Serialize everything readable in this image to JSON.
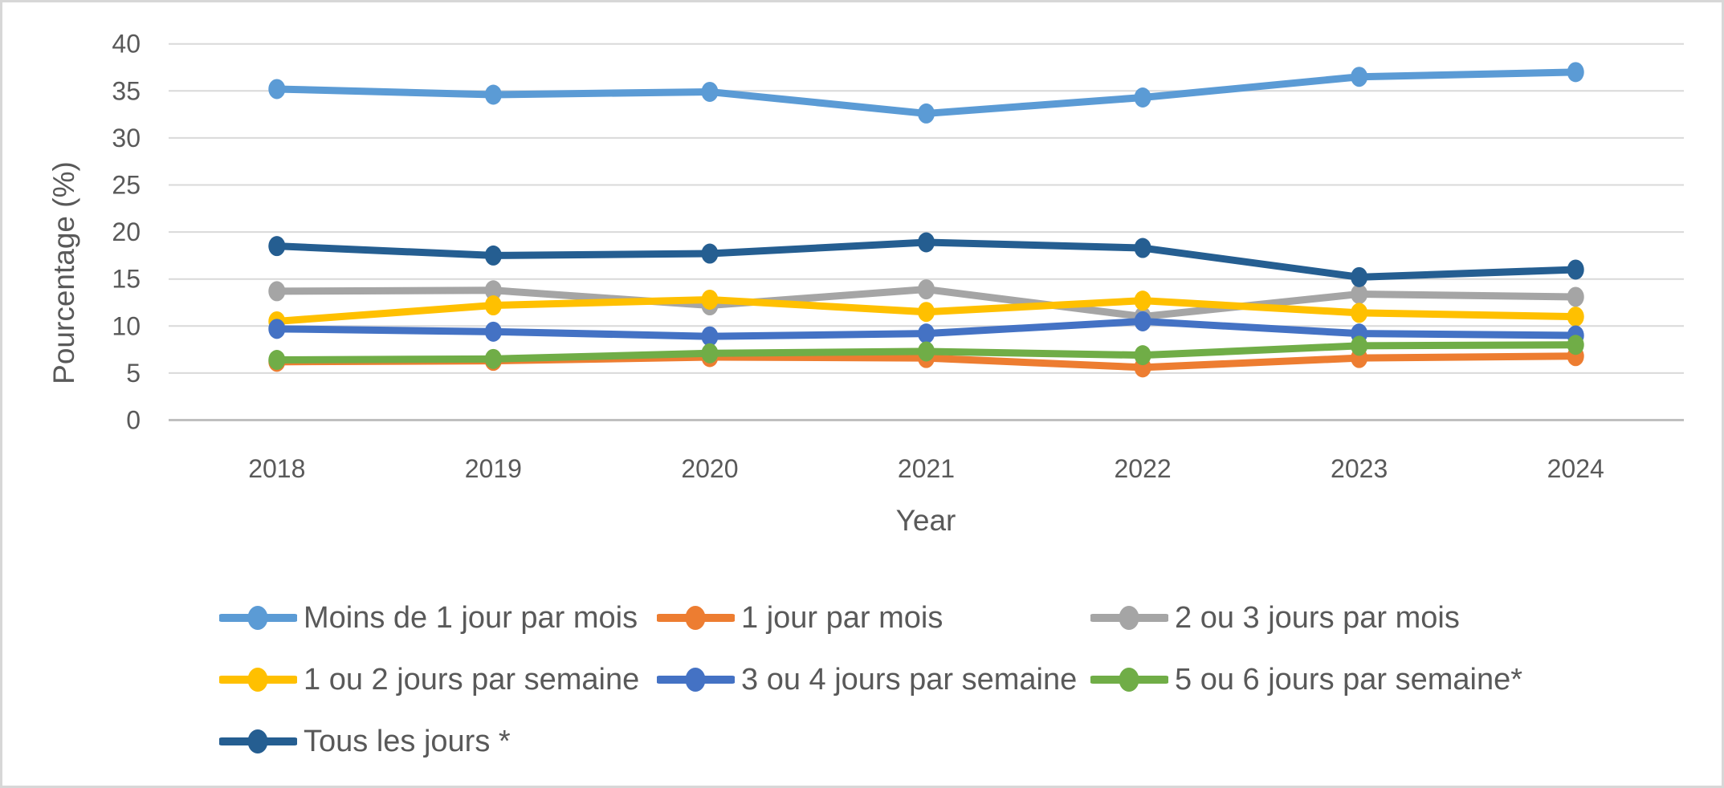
{
  "chart_data": {
    "type": "line",
    "title": "",
    "xlabel": "Year",
    "ylabel": "Pourcentage (%)",
    "x": [
      "2018",
      "2019",
      "2020",
      "2021",
      "2022",
      "2023",
      "2024"
    ],
    "ylim": [
      0,
      40
    ],
    "yticks": [
      0,
      5,
      10,
      15,
      20,
      25,
      30,
      35,
      40
    ],
    "grid": true,
    "gridline_color": "#d9d9d9",
    "axis_line_color": "#bfbfbf",
    "axis_text_color": "#595959",
    "legend_position": "bottom",
    "marker_style": "circle",
    "series": [
      {
        "name": "Moins de 1 jour par mois",
        "color": "#5B9BD5",
        "values": [
          35.2,
          34.6,
          34.9,
          32.6,
          34.3,
          36.5,
          37.0
        ]
      },
      {
        "name": "1 jour par mois",
        "color": "#ED7D31",
        "values": [
          6.2,
          6.3,
          6.7,
          6.6,
          5.6,
          6.6,
          6.8
        ]
      },
      {
        "name": "2 ou 3 jours par mois",
        "color": "#A5A5A5",
        "values": [
          13.7,
          13.8,
          12.2,
          13.9,
          11.0,
          13.4,
          13.1
        ]
      },
      {
        "name": "1 ou 2 jours par semaine",
        "color": "#FFC000",
        "values": [
          10.5,
          12.2,
          12.8,
          11.5,
          12.7,
          11.4,
          11.0
        ]
      },
      {
        "name": "3 ou 4 jours par semaine",
        "color": "#4472C4",
        "values": [
          9.7,
          9.4,
          8.9,
          9.2,
          10.5,
          9.2,
          9.0
        ]
      },
      {
        "name": "5 ou 6 jours par semaine*",
        "color": "#70AD47",
        "values": [
          6.4,
          6.5,
          7.1,
          7.3,
          6.9,
          7.9,
          8.0
        ]
      },
      {
        "name": "Tous les jours *",
        "color": "#255E91",
        "values": [
          18.5,
          17.5,
          17.7,
          18.9,
          18.3,
          15.2,
          16.0
        ]
      }
    ]
  }
}
